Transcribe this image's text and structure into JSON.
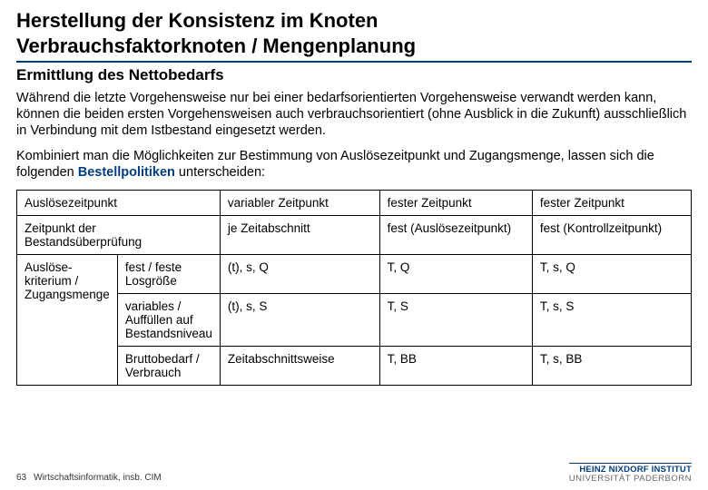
{
  "title_line1": "Herstellung der Konsistenz im Knoten",
  "title_line2": "Verbrauchsfaktorknoten / Mengenplanung",
  "subtitle": "Ermittlung des Nettobedarfs",
  "para1": "Während die letzte Vorgehensweise nur bei einer bedarfsorientierten Vorgehensweise verwandt werden kann, können die beiden ersten Vorgehensweisen auch verbrauchsorientiert (ohne Ausblick in die Zukunft) ausschließlich in Verbindung mit dem Istbestand eingesetzt werden.",
  "para2_a": "Kombiniert man die Möglichkeiten zur Bestimmung von Auslösezeitpunkt und Zugangsmenge, lassen sich die folgenden ",
  "para2_b": "Bestellpolitiken",
  "para2_c": " unterscheiden:",
  "table": {
    "r1": {
      "c12": "Auslösezeitpunkt",
      "c3": "variabler Zeitpunkt",
      "c4": "fester Zeitpunkt",
      "c5": "fester Zeitpunkt"
    },
    "r2": {
      "c12": "Zeitpunkt der Bestandsüberprüfung",
      "c3": "je Zeitabschnitt",
      "c4": "fest (Auslösezeitpunkt)",
      "c5": "fest (Kontrollzeitpunkt)"
    },
    "row_span_label": "Auslöse-kriterium / Zugangsmenge",
    "r3": {
      "c2": "fest / feste Losgröße",
      "c3": "(t), s, Q",
      "c4": "T, Q",
      "c5": "T, s, Q"
    },
    "r4": {
      "c2": "variables / Auffüllen auf Bestandsniveau",
      "c3": "(t), s, S",
      "c4": "T, S",
      "c5": "T, s, S"
    },
    "r5": {
      "c2": "Bruttobedarf / Verbrauch",
      "c3": "Zeitabschnittsweise",
      "c4": "T, BB",
      "c5": "T, s, BB"
    }
  },
  "footer": {
    "page": "63",
    "dept": "Wirtschaftsinformatik, insb. CIM",
    "inst1": "HEINZ NIXDORF INSTITUT",
    "inst2": "UNIVERSITÄT PADERBORN"
  },
  "colors": {
    "accent": "#003e7e"
  }
}
